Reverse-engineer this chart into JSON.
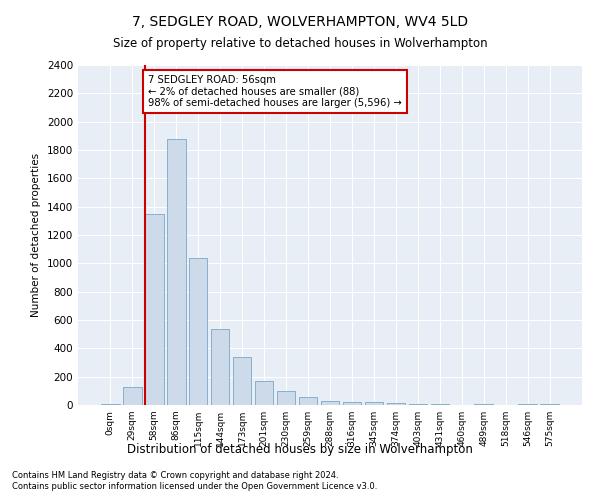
{
  "title": "7, SEDGLEY ROAD, WOLVERHAMPTON, WV4 5LD",
  "subtitle": "Size of property relative to detached houses in Wolverhampton",
  "xlabel": "Distribution of detached houses by size in Wolverhampton",
  "ylabel": "Number of detached properties",
  "footer1": "Contains HM Land Registry data © Crown copyright and database right 2024.",
  "footer2": "Contains public sector information licensed under the Open Government Licence v3.0.",
  "annotation_line1": "7 SEDGLEY ROAD: 56sqm",
  "annotation_line2": "← 2% of detached houses are smaller (88)",
  "annotation_line3": "98% of semi-detached houses are larger (5,596) →",
  "bar_color": "#ccdaea",
  "bar_edge_color": "#7aa8c8",
  "annotation_line_color": "#cc0000",
  "annotation_box_color": "#cc0000",
  "x_labels": [
    "0sqm",
    "29sqm",
    "58sqm",
    "86sqm",
    "115sqm",
    "144sqm",
    "173sqm",
    "201sqm",
    "230sqm",
    "259sqm",
    "288sqm",
    "316sqm",
    "345sqm",
    "374sqm",
    "403sqm",
    "431sqm",
    "460sqm",
    "489sqm",
    "518sqm",
    "546sqm",
    "575sqm"
  ],
  "bar_values": [
    10,
    130,
    1350,
    1880,
    1040,
    535,
    340,
    170,
    100,
    55,
    30,
    20,
    20,
    15,
    10,
    5,
    0,
    10,
    0,
    5,
    10
  ],
  "ylim": [
    0,
    2400
  ],
  "yticks": [
    0,
    200,
    400,
    600,
    800,
    1000,
    1200,
    1400,
    1600,
    1800,
    2000,
    2200,
    2400
  ],
  "vline_bar_index": 2,
  "figsize": [
    6.0,
    5.0
  ],
  "dpi": 100
}
